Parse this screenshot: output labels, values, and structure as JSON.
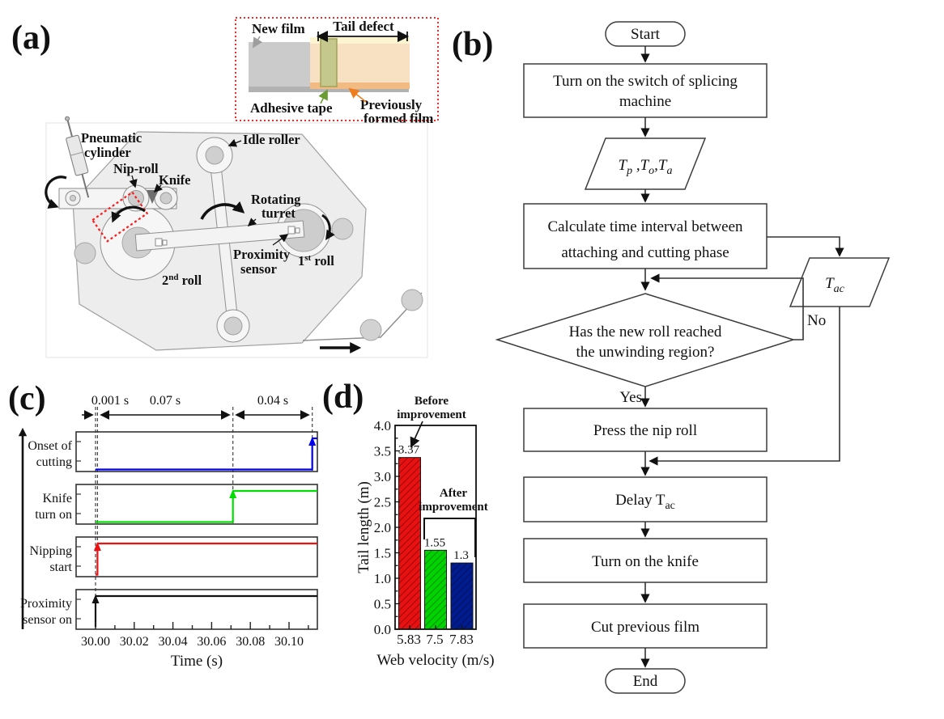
{
  "panel_labels": {
    "a": "(a)",
    "b": "(b)",
    "c": "(c)",
    "d": "(d)"
  },
  "inset": {
    "new_film": "New film",
    "tail_defect": "Tail defect",
    "adhesive_tape": "Adhesive tape",
    "previously_formed_film": [
      "Previously",
      "formed film"
    ],
    "colors": {
      "new_film": "#cbcbcb",
      "new_film_edge": "#b2b2b2",
      "prev_film": "#f8e0c2",
      "prev_film_top": "#fdf4d2",
      "prev_film_edge": "#f3bb84",
      "tape": "#c5c88c",
      "tape_border": "#a0a356",
      "label_gray": "#9e9e9e",
      "label_green": "#6b9c33",
      "label_orange": "#f07c1c",
      "border_red": "#ff2626"
    }
  },
  "machine": {
    "pneumatic_cylinder": [
      "Pneumatic",
      "cylinder"
    ],
    "nip_roll": "Nip-roll",
    "knife": "Knife",
    "idle_roller": "Idle roller",
    "rotating_turret": [
      "Rotating",
      "turret"
    ],
    "proximity_sensor": [
      "Proximity",
      "sensor"
    ],
    "first_roll": {
      "base": "1",
      "sup": "st",
      "rest": " roll"
    },
    "second_roll": {
      "base": "2",
      "sup": "nd",
      "rest": " roll"
    }
  },
  "flowchart": {
    "start": "Start",
    "step_switch": [
      "Turn on the switch of splicing",
      "machine"
    ],
    "inputs": {
      "p1": "T",
      "s1": "p",
      "c1": " ,",
      "p2": "T",
      "s2": "o",
      "c2": ",",
      "p3": "T",
      "s3": "a"
    },
    "step_calculate": [
      "Calculate time interval between",
      "attaching and cutting phase"
    ],
    "tac": {
      "base": "T",
      "sub": "ac"
    },
    "decision": [
      "Has the new roll reached",
      "the unwinding region?"
    ],
    "no_label": "No",
    "yes_label": "Yes",
    "step_press": "Press the nip roll",
    "step_delay": {
      "base": "Delay T",
      "sub": "ac"
    },
    "step_knife": "Turn on the knife",
    "step_cut": "Cut previous film",
    "end": "End"
  },
  "chart_data": [
    {
      "id": "splicing-timing",
      "type": "line",
      "xlabel": "Time (s)",
      "x_ticks": [
        "30.00",
        "30.02",
        "30.04",
        "30.06",
        "30.08",
        "30.10"
      ],
      "x_tick_values": [
        30.0,
        30.02,
        30.04,
        30.06,
        30.08,
        30.1
      ],
      "x_range": [
        29.99,
        30.1146
      ],
      "grid": false,
      "signals": [
        {
          "label": [
            "Onset of",
            "cutting"
          ],
          "color": "#0000ee",
          "on_time": 30.112,
          "low": 0,
          "high": 1
        },
        {
          "label": [
            "Knife",
            "turn on"
          ],
          "color": "#00dd00",
          "on_time": 30.071,
          "low": 0,
          "high": 1
        },
        {
          "label": [
            "Nipping",
            "start"
          ],
          "color": "#ee1111",
          "on_time": 30.001,
          "low": 0,
          "high": 1
        },
        {
          "label": [
            "Proximity",
            "sensor on"
          ],
          "color": "#111111",
          "on_time": 30.0,
          "low": 0,
          "high": 1
        }
      ],
      "interval_annotations": [
        {
          "label": "0.001 s",
          "from": 30.0,
          "to": 30.001
        },
        {
          "label": "0.07 s",
          "from": 30.001,
          "to": 30.071
        },
        {
          "label": "0.04 s",
          "from": 30.071,
          "to": 30.111
        }
      ]
    },
    {
      "id": "tail-length",
      "type": "bar",
      "title": "",
      "categories": [
        "5.83",
        "7.5",
        "7.83"
      ],
      "values": [
        3.37,
        1.55,
        1.3
      ],
      "bar_labels": [
        "3.37",
        "1.55",
        "1.3"
      ],
      "colors": [
        "#e81010",
        "#00d400",
        "#001c8e"
      ],
      "ylabel": "Tail length (m)",
      "xlabel": "Web velocity  (m/s)",
      "ylim": [
        0,
        4.0
      ],
      "y_ticks": [
        "0.0",
        "0.5",
        "1.0",
        "1.5",
        "2.0",
        "2.5",
        "3.0",
        "3.5",
        "4.0"
      ],
      "grid": false,
      "annotations": {
        "before": [
          "Before",
          "improvement"
        ],
        "after": [
          "After",
          "improvement"
        ]
      }
    }
  ]
}
